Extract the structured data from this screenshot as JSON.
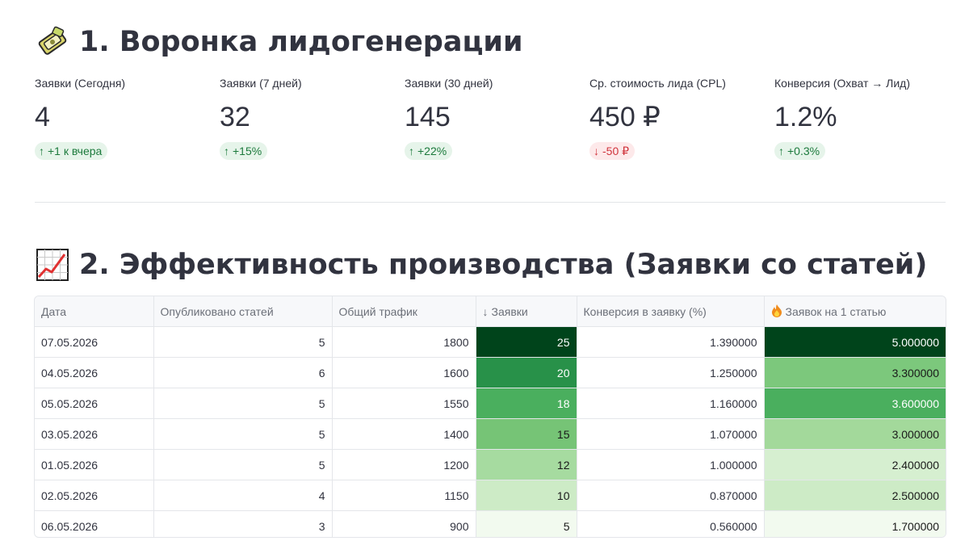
{
  "section1": {
    "title": "1. Воронка лидогенерации",
    "icon": "funnel-emoji-icon"
  },
  "metrics": [
    {
      "label": "Заявки (Сегодня)",
      "value": "4",
      "delta": "+1 к вчера",
      "direction": "up"
    },
    {
      "label": "Заявки (7 дней)",
      "value": "32",
      "delta": "+15%",
      "direction": "up"
    },
    {
      "label": "Заявки (30 дней)",
      "value": "145",
      "delta": "+22%",
      "direction": "up"
    },
    {
      "label": "Ср. стоимость лида (CPL)",
      "value": "450 ₽",
      "delta": "-50 ₽",
      "direction": "down"
    },
    {
      "label": "Конверсия (Охват → Лид)",
      "value": "1.2%",
      "delta": "+0.3%",
      "direction": "up"
    }
  ],
  "section2": {
    "title": "2. Эффективность производства (Заявки со статей)",
    "icon": "chart-increasing-icon"
  },
  "table": {
    "columns": [
      "Дата",
      "Опубликовано статей",
      "Общий трафик",
      "Заявки",
      "Конверсия в заявку (%)",
      "Заявок на 1 статью"
    ],
    "sort_arrow": "↓",
    "fire_icon": "fire-icon",
    "rows": [
      [
        "07.05.2026",
        "5",
        "1800",
        "25",
        "1.390000",
        "5.000000"
      ],
      [
        "04.05.2026",
        "6",
        "1600",
        "20",
        "1.250000",
        "3.300000"
      ],
      [
        "05.05.2026",
        "5",
        "1550",
        "18",
        "1.160000",
        "3.600000"
      ],
      [
        "03.05.2026",
        "5",
        "1400",
        "15",
        "1.070000",
        "3.000000"
      ],
      [
        "01.05.2026",
        "5",
        "1200",
        "12",
        "1.000000",
        "2.400000"
      ],
      [
        "02.05.2026",
        "4",
        "1150",
        "10",
        "0.870000",
        "2.500000"
      ],
      [
        "06.05.2026",
        "3",
        "900",
        "5",
        "0.560000",
        "1.700000"
      ]
    ]
  },
  "colors": {
    "delta_up_bg": "#e6f4ea",
    "delta_up_text": "#1c7a3c",
    "delta_down_bg": "#fde9ea",
    "delta_down_text": "#d0343c",
    "heat_darkest": "#00441b",
    "heat_lightest": "#f2faef"
  }
}
